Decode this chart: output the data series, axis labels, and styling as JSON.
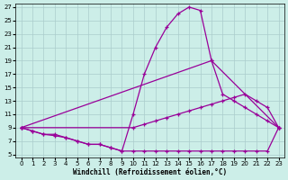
{
  "xlabel": "Windchill (Refroidissement éolien,°C)",
  "bg_color": "#cceee8",
  "grid_color": "#aacccc",
  "line_color": "#990099",
  "xlim_min": -0.5,
  "xlim_max": 23.5,
  "ylim_min": 4.5,
  "ylim_max": 27.5,
  "xticks": [
    0,
    1,
    2,
    3,
    4,
    5,
    6,
    7,
    8,
    9,
    10,
    11,
    12,
    13,
    14,
    15,
    16,
    17,
    18,
    19,
    20,
    21,
    22,
    23
  ],
  "yticks": [
    5,
    7,
    9,
    11,
    13,
    15,
    17,
    19,
    21,
    23,
    25,
    27
  ],
  "curves": [
    {
      "x": [
        0,
        1,
        2,
        3,
        4,
        5,
        6,
        7,
        8,
        9,
        10,
        11,
        12,
        13,
        14,
        15,
        16,
        17,
        18,
        19,
        20,
        21,
        22,
        23
      ],
      "y": [
        9,
        8.5,
        8,
        8,
        7.5,
        7,
        6.5,
        6.5,
        6.0,
        5.5,
        11,
        17,
        21,
        24,
        26,
        27,
        26.5,
        19,
        14,
        13,
        12,
        11,
        10,
        9
      ]
    },
    {
      "x": [
        0,
        17,
        23
      ],
      "y": [
        9,
        19,
        9
      ]
    },
    {
      "x": [
        0,
        10,
        11,
        12,
        13,
        14,
        15,
        16,
        17,
        18,
        19,
        20,
        21,
        22,
        23
      ],
      "y": [
        9,
        9,
        9.5,
        10,
        10.5,
        11,
        11.5,
        12,
        12.5,
        13,
        13.5,
        14,
        13,
        12,
        9
      ]
    },
    {
      "x": [
        0,
        1,
        2,
        3,
        4,
        5,
        6,
        7,
        8,
        9,
        10,
        11,
        12,
        13,
        14,
        15,
        16,
        17,
        18,
        19,
        20,
        21,
        22,
        23
      ],
      "y": [
        9,
        8.5,
        8,
        7.8,
        7.5,
        7,
        6.5,
        6.5,
        6.0,
        5.5,
        5.5,
        5.5,
        5.5,
        5.5,
        5.5,
        5.5,
        5.5,
        5.5,
        5.5,
        5.5,
        5.5,
        5.5,
        5.5,
        9
      ]
    }
  ]
}
